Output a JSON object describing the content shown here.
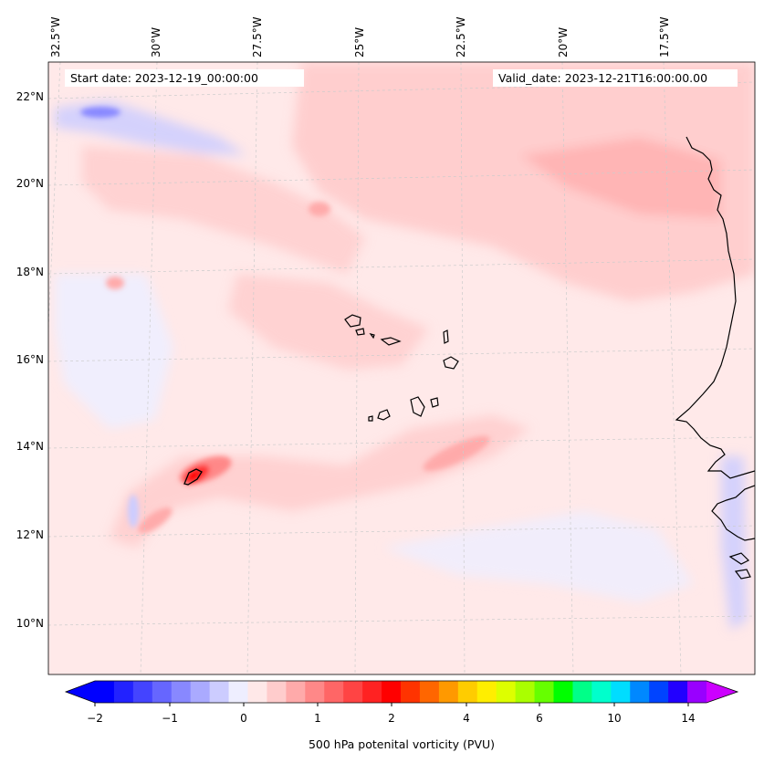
{
  "header": {
    "start_date": "Start date: 2023-12-19_00:00:00",
    "valid_date": "Valid_date: 2023-12-21T16:00:00.00"
  },
  "axes": {
    "lon_labels": [
      "32.5°W",
      "30°W",
      "27.5°W",
      "25°W",
      "22.5°W",
      "20°W",
      "17.5°W"
    ],
    "lat_labels": [
      "22°N",
      "20°N",
      "18°N",
      "16°N",
      "14°N",
      "12°N",
      "10°N"
    ],
    "grid": "dashed light grey"
  },
  "colorbar": {
    "title": "500 hPa potenital vorticity (PVU)",
    "tick_labels": [
      "−2",
      "−1",
      "0",
      "1",
      "2",
      "4",
      "6",
      "10",
      "14"
    ],
    "colors": [
      "#0000ff",
      "#2222ff",
      "#4444ff",
      "#6666ff",
      "#8888ff",
      "#aaaaff",
      "#ccccff",
      "#eeeeff",
      "#ffe8e8",
      "#ffcccc",
      "#ffaaaa",
      "#ff8888",
      "#ff6666",
      "#ff4444",
      "#ff2222",
      "#ff0000",
      "#ff3300",
      "#ff6600",
      "#ff9900",
      "#ffcc00",
      "#ffee00",
      "#ddff00",
      "#aaff00",
      "#66ff00",
      "#00ff00",
      "#00ff88",
      "#00ffcc",
      "#00ddff",
      "#0088ff",
      "#0044ff",
      "#2200ff",
      "#9900ff"
    ],
    "extend": "both",
    "left_arrow_color": "#0000ff",
    "right_arrow_color": "#cc00ff"
  },
  "map": {
    "background_color": "#ffe9e9",
    "coastline_color": "#000000",
    "features": [
      "Cape Verde islands",
      "West African coastline"
    ]
  }
}
